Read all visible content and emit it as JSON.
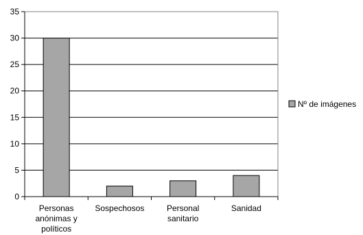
{
  "chart_data": {
    "type": "bar",
    "categories": [
      [
        "Personas",
        "anónimas y",
        "políticos"
      ],
      [
        "Sospechosos"
      ],
      [
        "Personal",
        "sanitario"
      ],
      [
        "Sanidad"
      ]
    ],
    "series": [
      {
        "name": "Nº de imágenes",
        "values": [
          30,
          2,
          3,
          4
        ],
        "color": "#a6a6a6"
      }
    ],
    "ylim": [
      0,
      35
    ],
    "yticks": [
      0,
      5,
      10,
      15,
      20,
      25,
      30,
      35
    ],
    "grid": true,
    "legend": "right",
    "title": "",
    "xlabel": "",
    "ylabel": ""
  }
}
